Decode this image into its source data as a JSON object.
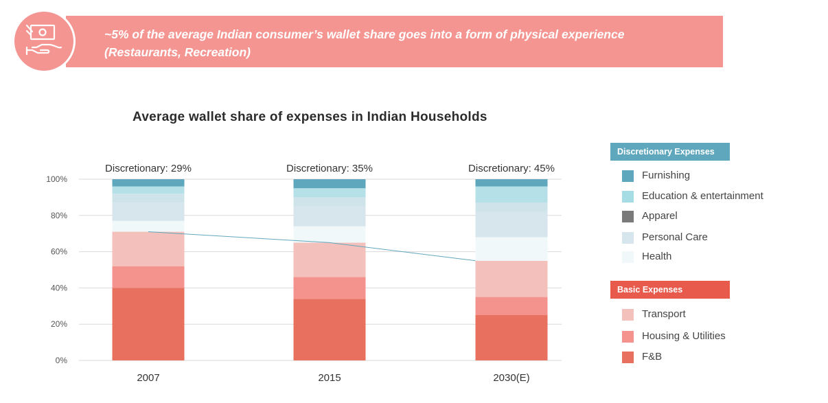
{
  "banner": {
    "line1": "~5% of the average Indian consumer’s wallet share goes into a form of physical experience",
    "line2": "(Restaurants, Recreation)",
    "icon": "money-hand-icon",
    "color": "#f49591"
  },
  "legend": {
    "discretionary_header": "Discretionary Expenses",
    "discretionary_color": "#5fa7bd",
    "discretionary_items": [
      {
        "label": "Furnishing",
        "color": "#5fa7bd"
      },
      {
        "label": "Education & entertainment",
        "color": "#a6dde5"
      },
      {
        "label": "Apparel",
        "color": "#7a7a7a"
      },
      {
        "label": "Personal Care",
        "color": "#d6e6ec"
      },
      {
        "label": "Health",
        "color": "#f1f8fa"
      }
    ],
    "basic_header": "Basic Expenses",
    "basic_color": "#e85a4c",
    "basic_items": [
      {
        "label": "Transport",
        "color": "#f3c0bc"
      },
      {
        "label": "Housing & Utilities",
        "color": "#f4938e"
      },
      {
        "label": "F&B",
        "color": "#e8705f"
      }
    ]
  },
  "chart_data": {
    "type": "bar",
    "stacked": true,
    "title": "Average wallet share of expenses in Indian Households",
    "categories": [
      "2007",
      "2015",
      "2030(E)"
    ],
    "annotations": [
      "Discretionary: 29%",
      "Discretionary: 35%",
      "Discretionary: 45%"
    ],
    "yticks": [
      "0%",
      "20%",
      "40%",
      "60%",
      "80%",
      "100%"
    ],
    "ylim": [
      0,
      100
    ],
    "grid": true,
    "connector_line": "top of basic expenses",
    "series": [
      {
        "name": "F&B",
        "color": "#e8705f",
        "values": [
          40,
          34,
          25
        ]
      },
      {
        "name": "Housing & Utilities",
        "color": "#f4938e",
        "values": [
          12,
          12,
          10
        ]
      },
      {
        "name": "Transport",
        "color": "#f3c0bc",
        "values": [
          19,
          19,
          20
        ]
      },
      {
        "name": "Health",
        "color": "#f1f8fa",
        "values": [
          6,
          9,
          13
        ]
      },
      {
        "name": "Personal Care",
        "color": "#d6e6ec",
        "values": [
          10,
          11,
          14
        ]
      },
      {
        "name": "Apparel",
        "color": "#cfe4ea",
        "values": [
          5,
          5,
          5
        ]
      },
      {
        "name": "Education & entertainment",
        "color": "#b5e0e7",
        "values": [
          4,
          5,
          9
        ]
      },
      {
        "name": "Furnishing",
        "color": "#5fa7bd",
        "values": [
          4,
          5,
          4
        ]
      }
    ]
  }
}
